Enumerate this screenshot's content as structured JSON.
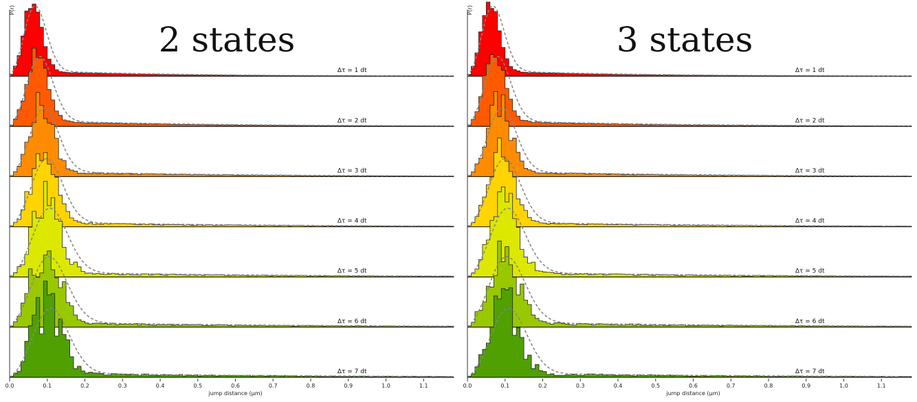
{
  "chart_data": [
    {
      "type": "histogram",
      "title": "2 states",
      "xlabel": "jump distance (µm)",
      "ylabel": "P(r)",
      "xlim": [
        0,
        1.18
      ],
      "xticks": [
        "0.0",
        "0.1",
        "0.2",
        "0.3",
        "0.4",
        "0.5",
        "0.6",
        "0.7",
        "0.8",
        "0.9",
        "1.0",
        "1.1"
      ],
      "fit_style": "dashed grey",
      "series": [
        {
          "name": "Δτ = 1 dt",
          "color": "#ff0000",
          "peak_um": 0.05,
          "width": 0.026,
          "tail": 0.1,
          "decay": 0.32
        },
        {
          "name": "Δτ = 2 dt",
          "color": "#ff5a00",
          "peak_um": 0.06,
          "width": 0.03,
          "tail": 0.1,
          "decay": 0.4
        },
        {
          "name": "Δτ = 3 dt",
          "color": "#ff8c00",
          "peak_um": 0.07,
          "width": 0.033,
          "tail": 0.09,
          "decay": 0.45
        },
        {
          "name": "Δτ = 4 dt",
          "color": "#ffd400",
          "peak_um": 0.075,
          "width": 0.036,
          "tail": 0.08,
          "decay": 0.5
        },
        {
          "name": "Δτ = 5 dt",
          "color": "#dce800",
          "peak_um": 0.08,
          "width": 0.04,
          "tail": 0.08,
          "decay": 0.55
        },
        {
          "name": "Δτ = 6 dt",
          "color": "#99c800",
          "peak_um": 0.075,
          "width": 0.042,
          "tail": 0.08,
          "decay": 0.6
        },
        {
          "name": "Δτ = 7 dt",
          "color": "#4fa000",
          "peak_um": 0.08,
          "width": 0.042,
          "tail": 0.07,
          "decay": 0.6
        }
      ]
    },
    {
      "type": "histogram",
      "title": "3 states",
      "xlabel": "jump distance (µm)",
      "ylabel": "P(r)",
      "xlim": [
        0,
        1.18
      ],
      "xticks": [
        "0.0",
        "0.1",
        "0.2",
        "0.3",
        "0.4",
        "0.5",
        "0.6",
        "0.7",
        "0.8",
        "0.9",
        "1.0",
        "1.1"
      ],
      "fit_style": "dashed grey",
      "series": [
        {
          "name": "Δτ = 1 dt",
          "color": "#ff0000",
          "peak_um": 0.05,
          "width": 0.026,
          "tail": 0.1,
          "decay": 0.32
        },
        {
          "name": "Δτ = 2 dt",
          "color": "#ff5a00",
          "peak_um": 0.06,
          "width": 0.03,
          "tail": 0.1,
          "decay": 0.4
        },
        {
          "name": "Δτ = 3 dt",
          "color": "#ff8c00",
          "peak_um": 0.07,
          "width": 0.033,
          "tail": 0.09,
          "decay": 0.45
        },
        {
          "name": "Δτ = 4 dt",
          "color": "#ffd400",
          "peak_um": 0.075,
          "width": 0.036,
          "tail": 0.08,
          "decay": 0.5
        },
        {
          "name": "Δτ = 5 dt",
          "color": "#dce800",
          "peak_um": 0.08,
          "width": 0.04,
          "tail": 0.08,
          "decay": 0.55
        },
        {
          "name": "Δτ = 6 dt",
          "color": "#99c800",
          "peak_um": 0.075,
          "width": 0.042,
          "tail": 0.08,
          "decay": 0.6
        },
        {
          "name": "Δτ = 7 dt",
          "color": "#4fa000",
          "peak_um": 0.08,
          "width": 0.042,
          "tail": 0.07,
          "decay": 0.6
        }
      ]
    }
  ]
}
